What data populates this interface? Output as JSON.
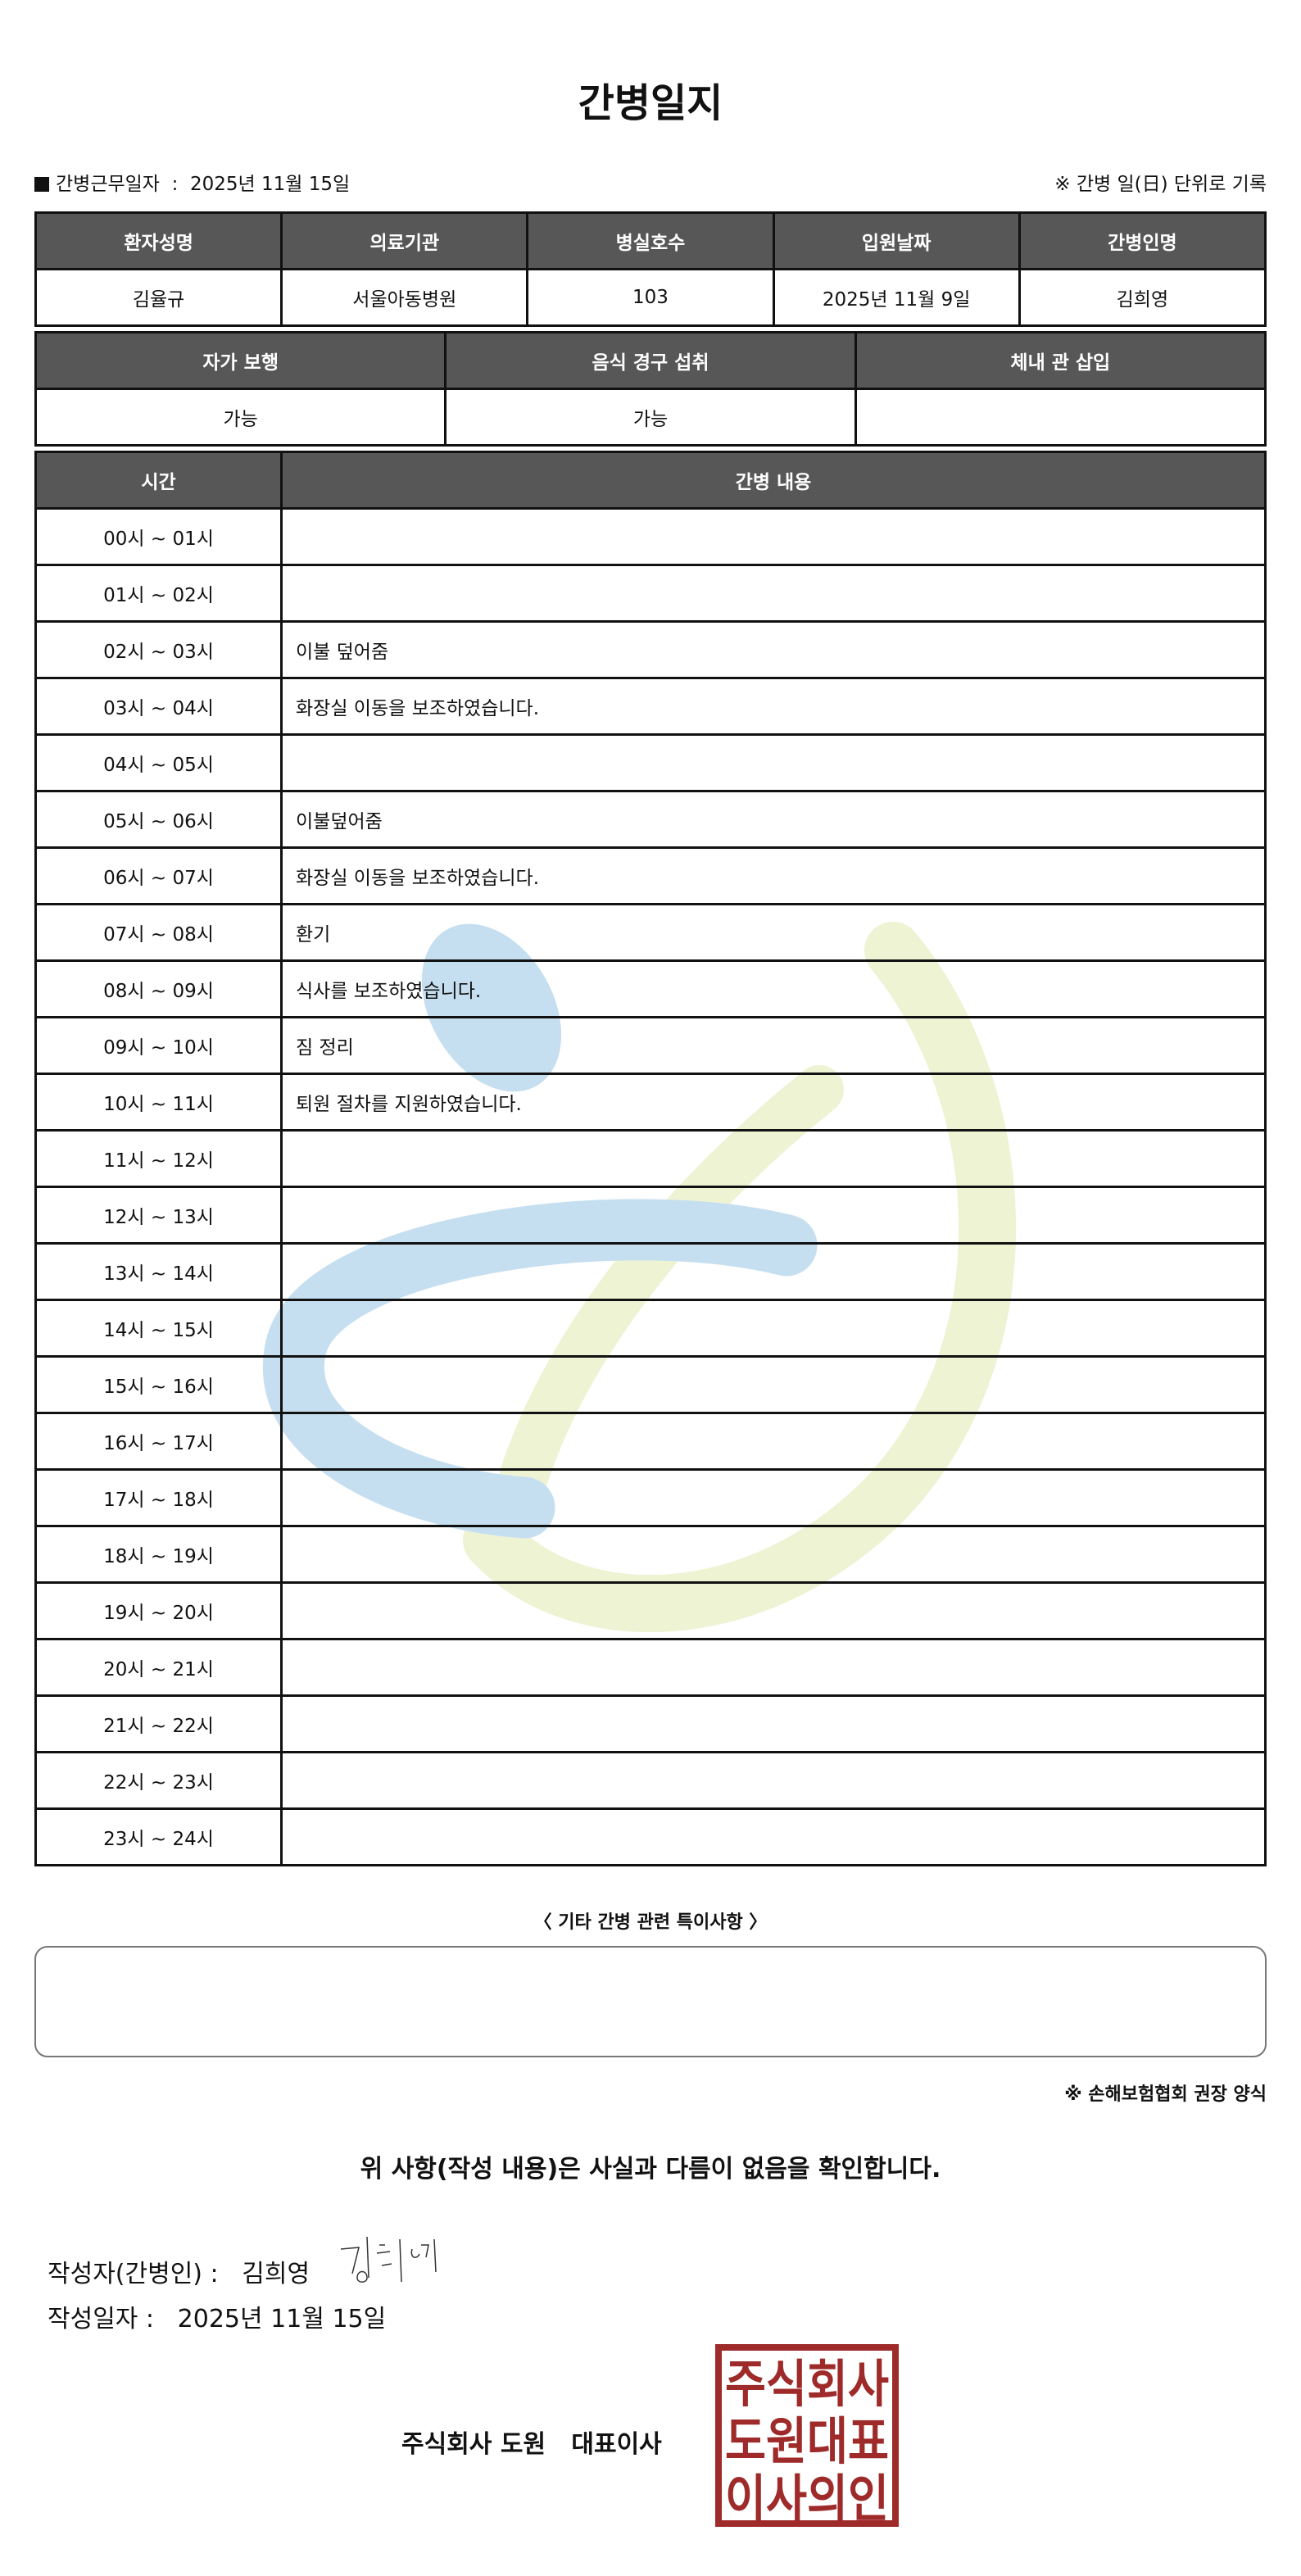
{
  "title": "간병일지",
  "work_date_label": "간병근무일자",
  "work_date": "2025년 11월 15일",
  "note_unit": "※ 간병 일(日) 단위로 기록",
  "patient_table": {
    "headers": [
      "환자성명",
      "의료기관",
      "병실호수",
      "입원날짜",
      "간병인명"
    ],
    "values": [
      "김율규",
      "서울아동병원",
      "103",
      "2025년 11월 9일",
      "김희영"
    ]
  },
  "status_table": {
    "headers": [
      "자가 보행",
      "음식 경구 섭취",
      "체내 관 삽입"
    ],
    "values": [
      "가능",
      "가능",
      ""
    ]
  },
  "log_table": {
    "headers": [
      "시간",
      "간병 내용"
    ],
    "rows": [
      {
        "time": "00시 ~ 01시",
        "content": ""
      },
      {
        "time": "01시 ~ 02시",
        "content": ""
      },
      {
        "time": "02시 ~ 03시",
        "content": "이불 덮어줌"
      },
      {
        "time": "03시 ~ 04시",
        "content": "화장실 이동을 보조하였습니다."
      },
      {
        "time": "04시 ~ 05시",
        "content": ""
      },
      {
        "time": "05시 ~ 06시",
        "content": "이불덮어줌"
      },
      {
        "time": "06시 ~ 07시",
        "content": "화장실 이동을 보조하였습니다."
      },
      {
        "time": "07시 ~ 08시",
        "content": "환기"
      },
      {
        "time": "08시 ~ 09시",
        "content": "식사를 보조하였습니다."
      },
      {
        "time": "09시 ~ 10시",
        "content": "짐 정리"
      },
      {
        "time": "10시 ~ 11시",
        "content": "퇴원 절차를 지원하였습니다."
      },
      {
        "time": "11시 ~ 12시",
        "content": ""
      },
      {
        "time": "12시 ~ 13시",
        "content": ""
      },
      {
        "time": "13시 ~ 14시",
        "content": ""
      },
      {
        "time": "14시 ~ 15시",
        "content": ""
      },
      {
        "time": "15시 ~ 16시",
        "content": ""
      },
      {
        "time": "16시 ~ 17시",
        "content": ""
      },
      {
        "time": "17시 ~ 18시",
        "content": ""
      },
      {
        "time": "18시 ~ 19시",
        "content": ""
      },
      {
        "time": "19시 ~ 20시",
        "content": ""
      },
      {
        "time": "20시 ~ 21시",
        "content": ""
      },
      {
        "time": "21시 ~ 22시",
        "content": ""
      },
      {
        "time": "22시 ~ 23시",
        "content": ""
      },
      {
        "time": "23시 ~ 24시",
        "content": ""
      }
    ]
  },
  "special_title": "〈 기타 간병 관련 특이사항 〉",
  "special_notes": "",
  "recommend_note": "※ 손해보험협회 권장 양식",
  "confirm_text": "위 사항(작성 내용)은 사실과 다름이 없음을 확인합니다.",
  "author_label": "작성자(간병인) :",
  "author_name": "김희영",
  "signature_text": "김희영",
  "date_label": "작성일자 :",
  "date_value": "2025년 11월 15일",
  "company": "주식회사 도원   대표이사",
  "stamp_text": [
    "주식회사",
    "도원대표",
    "이사의인"
  ],
  "colors": {
    "header_bg": "#575757",
    "stamp": "#9e2a2a",
    "watermark_blue": "#c6dff0",
    "watermark_green": "#eef3d4"
  }
}
